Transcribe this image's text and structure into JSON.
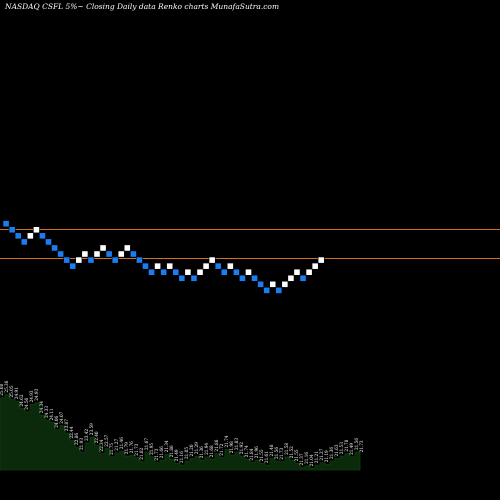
{
  "header": {
    "title": "NASDAQ CSFL  5%~  Closing Daily data  Renko  charts MunafaSutra.com"
  },
  "chart_data": {
    "type": "renko",
    "colors": {
      "background": "#000000",
      "up_brick": "#ffffff",
      "down_brick": "#1a7df2",
      "reference_line": "#d4721c",
      "volume_fill": "#0b2a0b",
      "volume_stroke": "#0f3d0f"
    },
    "reference_lines": [
      {
        "level": 0
      },
      {
        "level": 3
      }
    ],
    "bricks": [
      {
        "d": "down",
        "level": -2
      },
      {
        "d": "down",
        "level": -3
      },
      {
        "d": "down",
        "level": -4
      },
      {
        "d": "down",
        "level": -5
      },
      {
        "d": "up",
        "level": -4
      },
      {
        "d": "up",
        "level": -3
      },
      {
        "d": "down",
        "level": -4
      },
      {
        "d": "down",
        "level": -5
      },
      {
        "d": "down",
        "level": -6
      },
      {
        "d": "down",
        "level": -7
      },
      {
        "d": "down",
        "level": -8
      },
      {
        "d": "down",
        "level": -9
      },
      {
        "d": "up",
        "level": -8
      },
      {
        "d": "up",
        "level": -7
      },
      {
        "d": "down",
        "level": -8
      },
      {
        "d": "up",
        "level": -7
      },
      {
        "d": "up",
        "level": -6
      },
      {
        "d": "down",
        "level": -7
      },
      {
        "d": "down",
        "level": -8
      },
      {
        "d": "up",
        "level": -7
      },
      {
        "d": "up",
        "level": -6
      },
      {
        "d": "down",
        "level": -7
      },
      {
        "d": "down",
        "level": -8
      },
      {
        "d": "down",
        "level": -9
      },
      {
        "d": "down",
        "level": -10
      },
      {
        "d": "up",
        "level": -9
      },
      {
        "d": "down",
        "level": -10
      },
      {
        "d": "up",
        "level": -9
      },
      {
        "d": "down",
        "level": -10
      },
      {
        "d": "down",
        "level": -11
      },
      {
        "d": "up",
        "level": -10
      },
      {
        "d": "down",
        "level": -11
      },
      {
        "d": "up",
        "level": -10
      },
      {
        "d": "up",
        "level": -9
      },
      {
        "d": "up",
        "level": -8
      },
      {
        "d": "down",
        "level": -9
      },
      {
        "d": "down",
        "level": -10
      },
      {
        "d": "up",
        "level": -9
      },
      {
        "d": "down",
        "level": -10
      },
      {
        "d": "down",
        "level": -11
      },
      {
        "d": "up",
        "level": -10
      },
      {
        "d": "down",
        "level": -11
      },
      {
        "d": "down",
        "level": -12
      },
      {
        "d": "down",
        "level": -13
      },
      {
        "d": "up",
        "level": -12
      },
      {
        "d": "down",
        "level": -13
      },
      {
        "d": "up",
        "level": -12
      },
      {
        "d": "up",
        "level": -11
      },
      {
        "d": "up",
        "level": -10
      },
      {
        "d": "down",
        "level": -11
      },
      {
        "d": "up",
        "level": -10
      },
      {
        "d": "up",
        "level": -9
      },
      {
        "d": "up",
        "level": -8
      }
    ],
    "volume": [
      {
        "v": 88,
        "label": "25.08"
      },
      {
        "v": 92,
        "label": "25.36"
      },
      {
        "v": 86,
        "label": "25.05"
      },
      {
        "v": 84,
        "label": "24.91"
      },
      {
        "v": 75,
        "label": "24.62"
      },
      {
        "v": 71,
        "label": "24.56"
      },
      {
        "v": 80,
        "label": "24.93"
      },
      {
        "v": 82,
        "label": "24.93"
      },
      {
        "v": 67,
        "label": "24.34"
      },
      {
        "v": 61,
        "label": "24.33"
      },
      {
        "v": 58,
        "label": "24.11"
      },
      {
        "v": 49,
        "label": "24.06"
      },
      {
        "v": 54,
        "label": "24.07"
      },
      {
        "v": 45,
        "label": "23.87"
      },
      {
        "v": 36,
        "label": "22.44"
      },
      {
        "v": 28,
        "label": "22.86"
      },
      {
        "v": 22,
        "label": "21.93"
      },
      {
        "v": 33,
        "label": "23.42"
      },
      {
        "v": 40,
        "label": "23.59"
      },
      {
        "v": 30,
        "label": "22.40"
      },
      {
        "v": 20,
        "label": "22.34"
      },
      {
        "v": 26,
        "label": "22.57"
      },
      {
        "v": 16,
        "label": "21.75"
      },
      {
        "v": 21,
        "label": "21.27"
      },
      {
        "v": 23,
        "label": "21.46"
      },
      {
        "v": 17,
        "label": "21.79"
      },
      {
        "v": 18,
        "label": "21.76"
      },
      {
        "v": 15,
        "label": "21.73"
      },
      {
        "v": 10,
        "label": "21.82"
      },
      {
        "v": 22,
        "label": "21.67"
      },
      {
        "v": 16,
        "label": "21.95"
      },
      {
        "v": 9,
        "label": "21.73"
      },
      {
        "v": 12,
        "label": "21.66"
      },
      {
        "v": 19,
        "label": "21.34"
      },
      {
        "v": 13,
        "label": "21.86"
      },
      {
        "v": 8,
        "label": "21.49"
      },
      {
        "v": 6,
        "label": "21.16"
      },
      {
        "v": 11,
        "label": "21.05"
      },
      {
        "v": 14,
        "label": "21.20"
      },
      {
        "v": 17,
        "label": "21.29"
      },
      {
        "v": 12,
        "label": "21.36"
      },
      {
        "v": 16,
        "label": "21.94"
      },
      {
        "v": 13,
        "label": "21.68"
      },
      {
        "v": 20,
        "label": "21.86"
      },
      {
        "v": 15,
        "label": "21.72"
      },
      {
        "v": 25,
        "label": "21.74"
      },
      {
        "v": 18,
        "label": "21.98"
      },
      {
        "v": 22,
        "label": "21.83"
      },
      {
        "v": 17,
        "label": "21.92"
      },
      {
        "v": 13,
        "label": "21.74"
      },
      {
        "v": 9,
        "label": "21.84"
      },
      {
        "v": 12,
        "label": "21.96"
      },
      {
        "v": 8,
        "label": "21.55"
      },
      {
        "v": 6,
        "label": "21.61"
      },
      {
        "v": 14,
        "label": "21.48"
      },
      {
        "v": 11,
        "label": "21.56"
      },
      {
        "v": 10,
        "label": "21.73"
      },
      {
        "v": 16,
        "label": "21.58"
      },
      {
        "v": 12,
        "label": "21.52"
      },
      {
        "v": 8,
        "label": "21.55"
      },
      {
        "v": 3,
        "label": "21.37"
      },
      {
        "v": 5,
        "label": "21.16"
      },
      {
        "v": 2,
        "label": "21.04"
      },
      {
        "v": 6,
        "label": "21.21"
      },
      {
        "v": 9,
        "label": "21.27"
      },
      {
        "v": 7,
        "label": "21.19"
      },
      {
        "v": 11,
        "label": "21.36"
      },
      {
        "v": 14,
        "label": "21.63"
      },
      {
        "v": 17,
        "label": "21.53"
      },
      {
        "v": 20,
        "label": "21.78"
      },
      {
        "v": 16,
        "label": "21.49"
      },
      {
        "v": 22,
        "label": "21.56"
      },
      {
        "v": 19,
        "label": "21.73"
      }
    ]
  }
}
